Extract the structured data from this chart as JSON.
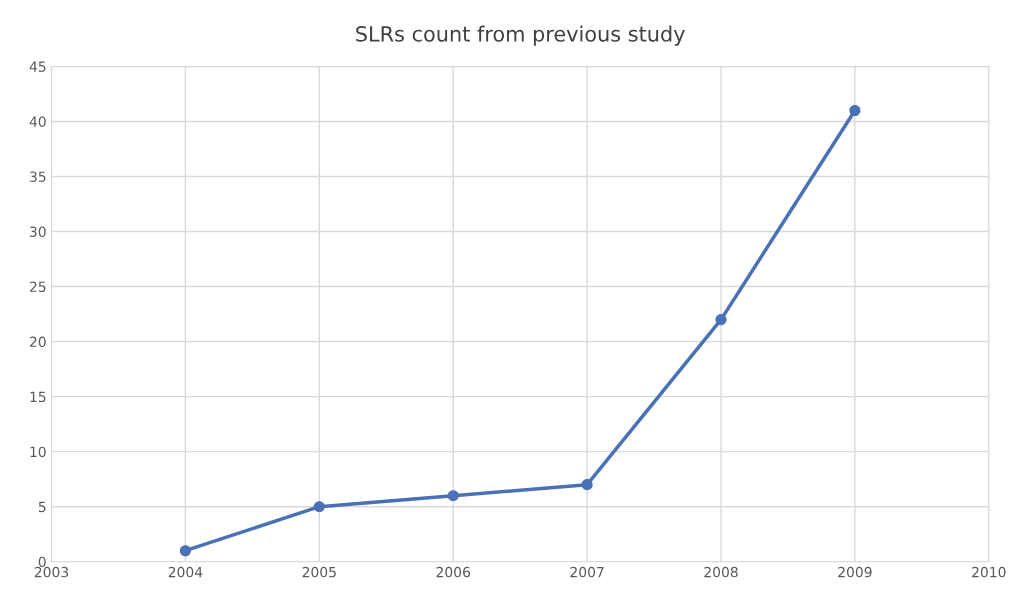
{
  "chart_data": {
    "type": "line",
    "title": "SLRs count from previous study",
    "x": [
      2004,
      2005,
      2006,
      2007,
      2008,
      2009
    ],
    "series": [
      {
        "color": "#4a70b5",
        "values": [
          1,
          5,
          6,
          7,
          22,
          41
        ]
      }
    ],
    "xlim": [
      2003,
      2010
    ],
    "xticks": [
      2003,
      2004,
      2005,
      2006,
      2007,
      2008,
      2009,
      2010
    ],
    "ylim": [
      0,
      45
    ],
    "yticks": [
      0,
      5,
      10,
      15,
      20,
      25,
      30,
      35,
      40,
      45
    ],
    "grid": true,
    "marker": "circle",
    "line_style": "solid"
  }
}
